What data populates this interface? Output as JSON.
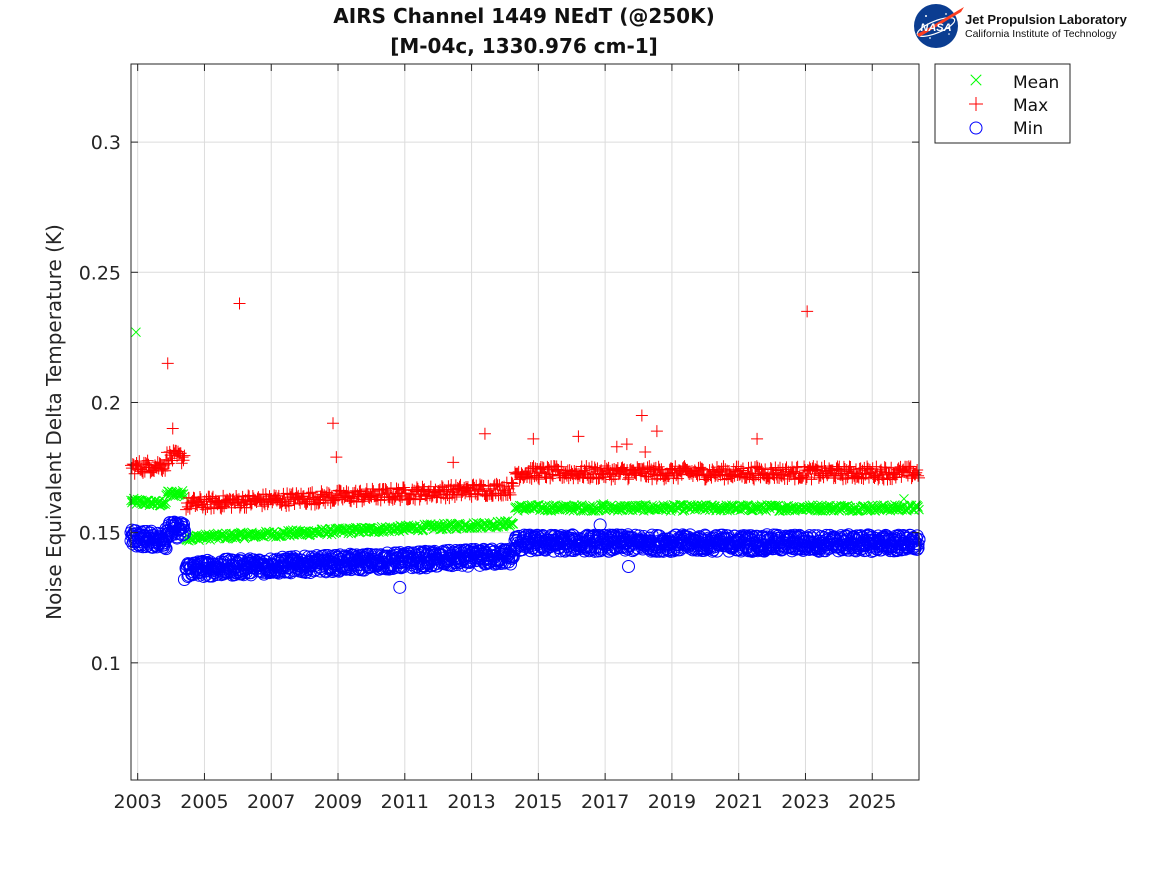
{
  "chart_data": {
    "type": "scatter",
    "title_line1": "AIRS Channel 1449 NEdT (@250K)",
    "title_line2": "[M-04c, 1330.976 cm-1]",
    "ylabel": "Noise Equivalent Delta Temperature (K)",
    "xlabel": "",
    "xlim": [
      2002.8,
      2026.4
    ],
    "ylim": [
      0.055,
      0.33
    ],
    "x_ticks": [
      "2003",
      "2005",
      "2007",
      "2009",
      "2011",
      "2013",
      "2015",
      "2017",
      "2019",
      "2021",
      "2023",
      "2025"
    ],
    "y_ticks": [
      "0.1",
      "0.15",
      "0.2",
      "0.25",
      "0.3"
    ],
    "grid": true,
    "legend_position": "outside-top-right",
    "series": [
      {
        "name": "Mean",
        "marker": "x",
        "color": "#00ff00",
        "segments": [
          {
            "x0": 2002.8,
            "x1": 2003.85,
            "y0": 0.162,
            "y1": 0.161
          },
          {
            "x0": 2003.85,
            "x1": 2004.4,
            "y0": 0.165,
            "y1": 0.165
          },
          {
            "x0": 2004.45,
            "x1": 2014.25,
            "y0": 0.148,
            "y1": 0.1535
          },
          {
            "x0": 2014.3,
            "x1": 2026.4,
            "y0": 0.1595,
            "y1": 0.1595
          }
        ],
        "outliers": [
          [
            2002.95,
            0.227
          ],
          [
            2016.95,
            0.161
          ],
          [
            2025.95,
            0.163
          ]
        ]
      },
      {
        "name": "Max",
        "marker": "+",
        "color": "#ff0000",
        "segments": [
          {
            "x0": 2002.8,
            "x1": 2003.85,
            "y0": 0.175,
            "y1": 0.176
          },
          {
            "x0": 2003.85,
            "x1": 2004.4,
            "y0": 0.179,
            "y1": 0.179
          },
          {
            "x0": 2004.45,
            "x1": 2014.25,
            "y0": 0.161,
            "y1": 0.167
          },
          {
            "x0": 2014.3,
            "x1": 2026.4,
            "y0": 0.173,
            "y1": 0.173
          }
        ],
        "outliers": [
          [
            2003.9,
            0.215
          ],
          [
            2004.05,
            0.19
          ],
          [
            2006.05,
            0.238
          ],
          [
            2008.85,
            0.192
          ],
          [
            2008.95,
            0.179
          ],
          [
            2012.45,
            0.177
          ],
          [
            2013.4,
            0.188
          ],
          [
            2014.85,
            0.186
          ],
          [
            2016.2,
            0.187
          ],
          [
            2017.35,
            0.183
          ],
          [
            2017.65,
            0.184
          ],
          [
            2018.1,
            0.195
          ],
          [
            2018.55,
            0.189
          ],
          [
            2018.2,
            0.181
          ],
          [
            2021.55,
            0.186
          ],
          [
            2023.05,
            0.235
          ]
        ]
      },
      {
        "name": "Min",
        "marker": "o",
        "color": "#0000ff",
        "segments": [
          {
            "x0": 2002.8,
            "x1": 2003.85,
            "y0": 0.148,
            "y1": 0.147
          },
          {
            "x0": 2003.85,
            "x1": 2004.4,
            "y0": 0.151,
            "y1": 0.151
          },
          {
            "x0": 2004.45,
            "x1": 2014.25,
            "y0": 0.136,
            "y1": 0.141
          },
          {
            "x0": 2014.3,
            "x1": 2026.4,
            "y0": 0.146,
            "y1": 0.146
          }
        ],
        "outliers": [
          [
            2010.85,
            0.129
          ],
          [
            2016.85,
            0.153
          ],
          [
            2017.7,
            0.137
          ],
          [
            2004.4,
            0.132
          ]
        ]
      }
    ]
  },
  "logo": {
    "nasa_text": "NASA",
    "line1": "Jet Propulsion Laboratory",
    "line2": "California Institute of Technology"
  }
}
